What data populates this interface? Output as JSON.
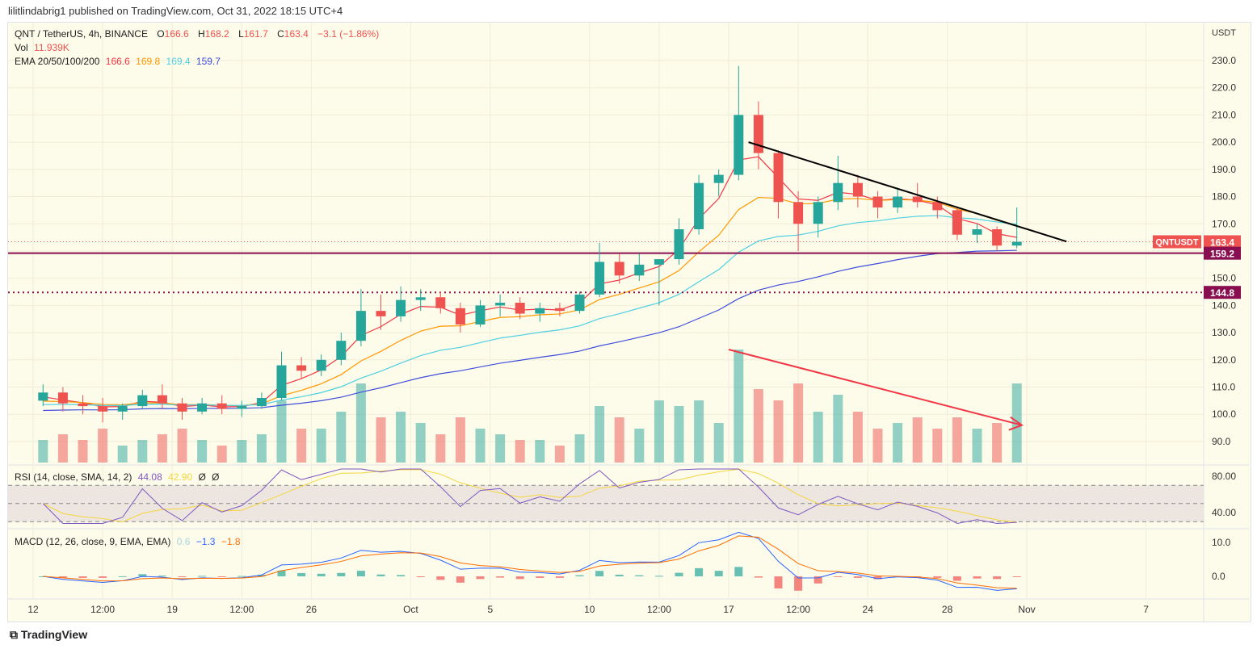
{
  "header": {
    "published": "lilitlindabrig1 published on TradingView.com, Oct 31, 2022 18:15 UTC+4"
  },
  "legend": {
    "symbol": "QNT / TetherUS, 4h, BINANCE",
    "o_label": "O",
    "o": "166.6",
    "h_label": "H",
    "h": "168.2",
    "l_label": "L",
    "l": "161.7",
    "c_label": "C",
    "c": "163.4",
    "change": "−3.1 (−1.86%)",
    "vol_label": "Vol",
    "vol": "11.939K",
    "ema_label": "EMA 20/50/100/200",
    "ema20": "166.6",
    "ema50": "169.8",
    "ema100": "169.4",
    "ema200": "159.7",
    "rsi_label": "RSI (14, close, SMA, 14, 2)",
    "rsi": "44.08",
    "rsi_sma": "42.90",
    "rsi_na1": "Ø",
    "rsi_na2": "Ø",
    "macd_label": "MACD (12, 26, close, 9, EMA, EMA)",
    "macd_hist": "0.6",
    "macd": "−1.3",
    "macd_signal": "−1.8"
  },
  "footer": {
    "brand": "TradingView"
  },
  "colors": {
    "up": "#26a69a",
    "down": "#ef5350",
    "ema20": "#f23645",
    "ema50": "#ff9800",
    "ema100": "#4dd0e1",
    "ema200": "#3f4fdc",
    "rsi": "#7e57c2",
    "rsi_sma": "#f5d53d",
    "macd": "#2962ff",
    "signal": "#ff6d00",
    "level": "#880e4f",
    "trend": "#000000",
    "arrow": "#f23645",
    "background": "#fdfbea"
  },
  "chart_data": {
    "type": "candlestick",
    "currency": "USDT",
    "start_date": "2022-09-12",
    "interval": "1 day (approximated from 4h chart)",
    "ohlc": [
      [
        105,
        111,
        103,
        108
      ],
      [
        108,
        110,
        101,
        104
      ],
      [
        104,
        107,
        100,
        103
      ],
      [
        103,
        106,
        97,
        101
      ],
      [
        101,
        104,
        98,
        103
      ],
      [
        103,
        109,
        102,
        107
      ],
      [
        107,
        111,
        102,
        104
      ],
      [
        104,
        106,
        98,
        101
      ],
      [
        101,
        106,
        100,
        104
      ],
      [
        104,
        107,
        100,
        102
      ],
      [
        102,
        105,
        99,
        103
      ],
      [
        103,
        108,
        102,
        106
      ],
      [
        106,
        123,
        105,
        118
      ],
      [
        118,
        121,
        113,
        116
      ],
      [
        116,
        122,
        114,
        120
      ],
      [
        120,
        130,
        118,
        127
      ],
      [
        127,
        146,
        125,
        138
      ],
      [
        138,
        144,
        131,
        136
      ],
      [
        136,
        147,
        134,
        142
      ],
      [
        142,
        146,
        138,
        143
      ],
      [
        143,
        145,
        137,
        139
      ],
      [
        139,
        141,
        130,
        133
      ],
      [
        133,
        142,
        132,
        140
      ],
      [
        140,
        144,
        136,
        141
      ],
      [
        141,
        143,
        135,
        137
      ],
      [
        137,
        141,
        134,
        139
      ],
      [
        139,
        141,
        136,
        138
      ],
      [
        138,
        145,
        137,
        144
      ],
      [
        144,
        163,
        143,
        156
      ],
      [
        156,
        159,
        148,
        151
      ],
      [
        151,
        159,
        149,
        155
      ],
      [
        155,
        157,
        140,
        157
      ],
      [
        157,
        172,
        155,
        168
      ],
      [
        168,
        188,
        166,
        185
      ],
      [
        185,
        190,
        180,
        188
      ],
      [
        188,
        228,
        186,
        210
      ],
      [
        210,
        215,
        190,
        196
      ],
      [
        196,
        197,
        172,
        178
      ],
      [
        178,
        182,
        160,
        170
      ],
      [
        170,
        180,
        165,
        178
      ],
      [
        178,
        195,
        175,
        185
      ],
      [
        185,
        188,
        176,
        180
      ],
      [
        180,
        182,
        172,
        176
      ],
      [
        176,
        183,
        174,
        180
      ],
      [
        180,
        185,
        176,
        178
      ],
      [
        178,
        180,
        172,
        175
      ],
      [
        175,
        176,
        164,
        166
      ],
      [
        166,
        170,
        163,
        168
      ],
      [
        168,
        169,
        160,
        162
      ],
      [
        162,
        176,
        161,
        163.4
      ]
    ],
    "volume_relative": [
      0.2,
      0.25,
      0.2,
      0.3,
      0.15,
      0.2,
      0.25,
      0.3,
      0.2,
      0.15,
      0.2,
      0.25,
      0.55,
      0.3,
      0.3,
      0.45,
      0.7,
      0.4,
      0.45,
      0.35,
      0.25,
      0.4,
      0.3,
      0.25,
      0.2,
      0.2,
      0.15,
      0.25,
      0.5,
      0.4,
      0.3,
      0.55,
      0.5,
      0.55,
      0.35,
      1.0,
      0.65,
      0.55,
      0.7,
      0.45,
      0.6,
      0.45,
      0.3,
      0.35,
      0.4,
      0.3,
      0.4,
      0.3,
      0.35,
      0.7
    ],
    "y_ticks": [
      230,
      220,
      210,
      200,
      190,
      180,
      170,
      160,
      150,
      140,
      130,
      120,
      110,
      100,
      90
    ],
    "ylim": [
      87,
      240
    ],
    "price_labels": [
      {
        "text": "QNTUSDT",
        "value": "163.4"
      },
      {
        "value": "159.2"
      },
      {
        "value": "144.8"
      }
    ],
    "horizontal_levels": [
      {
        "price": 159.2,
        "style": "solid"
      },
      {
        "price": 144.8,
        "style": "dotted"
      }
    ],
    "trendline": {
      "from": [
        "2022-10-18",
        200
      ],
      "to": [
        "2022-11-03",
        163.5
      ]
    },
    "arrow": {
      "from": [
        "2022-10-17",
        123.8
      ],
      "to": [
        "2022-10-31T18:00",
        96
      ]
    },
    "x_ticks": [
      {
        "label": "12",
        "date": "2022-09-12"
      },
      {
        "label": "12:00",
        "date": "2022-09-15T12:00"
      },
      {
        "label": "19",
        "date": "2022-09-19"
      },
      {
        "label": "12:00",
        "date": "2022-09-22T12:00"
      },
      {
        "label": "26",
        "date": "2022-09-26"
      },
      {
        "label": "Oct",
        "date": "2022-10-01"
      },
      {
        "label": "5",
        "date": "2022-10-05"
      },
      {
        "label": "10",
        "date": "2022-10-10"
      },
      {
        "label": "12:00",
        "date": "2022-10-13T12:00"
      },
      {
        "label": "17",
        "date": "2022-10-17"
      },
      {
        "label": "12:00",
        "date": "2022-10-20T12:00"
      },
      {
        "label": "24",
        "date": "2022-10-24"
      },
      {
        "label": "28",
        "date": "2022-10-28"
      },
      {
        "label": "Nov",
        "date": "2022-11-01"
      },
      {
        "label": "7",
        "date": "2022-11-07"
      }
    ],
    "rsi_ticks": [
      "80.00",
      "40.00"
    ],
    "rsi_band": [
      30,
      70
    ],
    "macd_ticks": [
      "10.0",
      "0.0"
    ]
  }
}
